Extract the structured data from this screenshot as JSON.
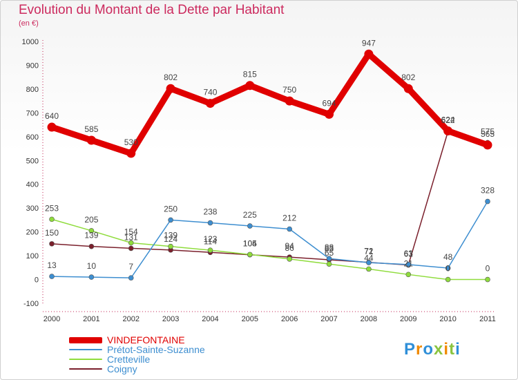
{
  "title": "Evolution du Montant de la Dette par Habitant",
  "subtitle": "(en €)",
  "brand": "Proxiti",
  "chart_data": {
    "type": "line",
    "title": "Evolution du Montant de la Dette par Habitant",
    "ylabel": "(en €)",
    "categories": [
      "2000",
      "2001",
      "2002",
      "2003",
      "2004",
      "2005",
      "2006",
      "2007",
      "2008",
      "2009",
      "2010",
      "2011"
    ],
    "ylim": [
      -100,
      1000
    ],
    "yticks": [
      -100,
      0,
      100,
      200,
      300,
      400,
      500,
      600,
      700,
      800,
      900,
      1000
    ],
    "grid": false,
    "legend_position": "bottom-left",
    "series": [
      {
        "name": "VINDEFONTAINE",
        "color": "#e00000",
        "values": [
          640,
          585,
          530,
          802,
          740,
          815,
          750,
          694,
          947,
          802,
          624,
          565
        ],
        "labels": [
          "640",
          "585",
          "530",
          "802",
          "740",
          "815",
          "750",
          "694",
          "947",
          "802",
          "624",
          "565"
        ]
      },
      {
        "name": "Prétot-Sainte-Suzanne",
        "color": "#3d8ed0",
        "values": [
          13,
          10,
          7,
          250,
          238,
          225,
          212,
          88,
          71,
          63,
          48,
          328
        ],
        "labels": [
          "13",
          "10",
          "7",
          "250",
          "238",
          "225",
          "212",
          "88",
          "71",
          "63",
          "48",
          "328"
        ]
      },
      {
        "name": "Cretteville",
        "color": "#8fdc3c",
        "values": [
          253,
          205,
          154,
          139,
          123,
          105,
          86,
          65,
          44,
          21,
          0,
          0
        ],
        "labels": [
          "253",
          "205",
          "154",
          "139",
          "123",
          "105",
          "86",
          "65",
          "44",
          "21",
          "0",
          "0"
        ]
      },
      {
        "name": "Coigny",
        "color": "#7a1f2b",
        "values": [
          150,
          139,
          131,
          124,
          114,
          104,
          94,
          83,
          72,
          61,
          622,
          575
        ],
        "labels": [
          "150",
          "139",
          "131",
          "124",
          "114",
          "104",
          "94",
          "83",
          "72",
          "61",
          "622",
          "575"
        ]
      }
    ]
  }
}
